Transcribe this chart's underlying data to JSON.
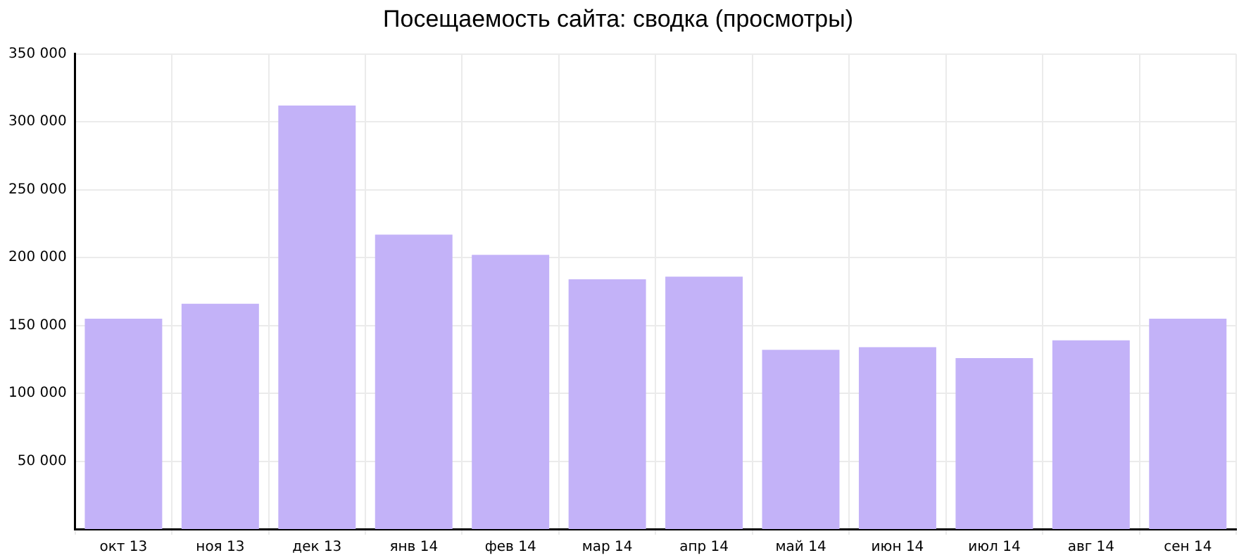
{
  "chart_data": {
    "type": "bar",
    "title": "Посещаемость сайта: сводка (просмотры)",
    "categories": [
      "окт 13",
      "ноя 13",
      "дек 13",
      "янв 14",
      "фев 14",
      "мар 14",
      "апр 14",
      "май 14",
      "июн 14",
      "июл 14",
      "авг 14",
      "сен 14"
    ],
    "values": [
      155000,
      166000,
      312000,
      217000,
      202000,
      184000,
      186000,
      132000,
      134000,
      126000,
      139000,
      155000
    ],
    "color": "#c3b2f8",
    "ylim": [
      0,
      350000
    ],
    "yticks": [
      {
        "value": 50000,
        "label": "50 000"
      },
      {
        "value": 100000,
        "label": "100 000"
      },
      {
        "value": 150000,
        "label": "150 000"
      },
      {
        "value": 200000,
        "label": "200 000"
      },
      {
        "value": 250000,
        "label": "250 000"
      },
      {
        "value": 300000,
        "label": "300 000"
      },
      {
        "value": 350000,
        "label": "350 000"
      }
    ],
    "grid": true,
    "legend": false
  }
}
